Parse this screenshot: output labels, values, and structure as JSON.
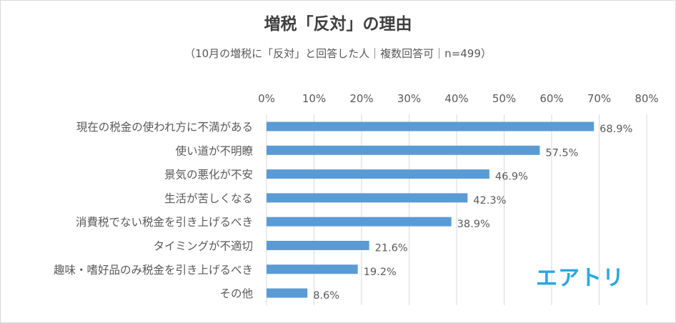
{
  "chart_data": {
    "type": "bar",
    "orientation": "horizontal",
    "title": "増税「反対」の理由",
    "subtitle": "（10月の増税に「反対」と回答した人｜複数回答可｜n=499）",
    "categories": [
      "現在の税金の使われ方に不満がある",
      "使い道が不明瞭",
      "景気の悪化が不安",
      "生活が苦しくなる",
      "消費税でない税金を引き上げるべき",
      "タイミングが不適切",
      "趣味・嗜好品のみ税金を引き上げるべき",
      "その他"
    ],
    "values": [
      68.9,
      57.5,
      46.9,
      42.3,
      38.9,
      21.6,
      19.2,
      8.6
    ],
    "data_labels": [
      "68.9%",
      "57.5%",
      "46.9%",
      "42.3%",
      "38.9%",
      "21.6%",
      "19.2%",
      "8.6%"
    ],
    "xlim": [
      0,
      80
    ],
    "xticks": [
      "0%",
      "10%",
      "20%",
      "30%",
      "40%",
      "50%",
      "60%",
      "70%",
      "80%"
    ],
    "axis_position": "top",
    "grid": true,
    "bar_color": "#5b9bd5",
    "grid_color": "#d9d9d9",
    "text_color": "#595959"
  },
  "logo": {
    "text": "エアトリ",
    "color": "#29a8e0"
  }
}
